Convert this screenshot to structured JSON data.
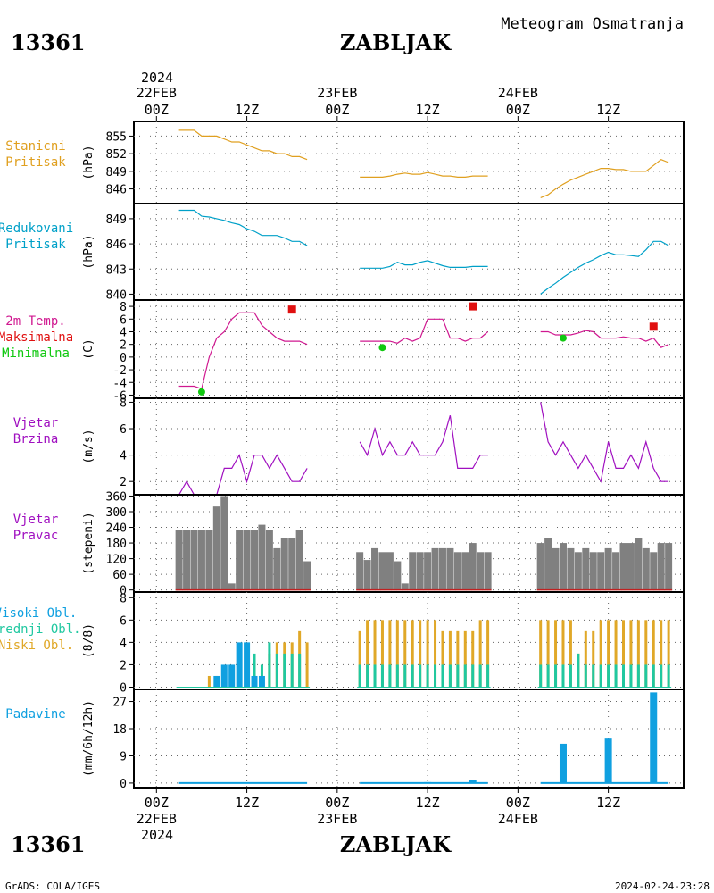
{
  "header": {
    "station_id": "13361",
    "station_name": "ZABLJAK",
    "meteogram_title": "Meteogram Osmatranja",
    "footer_left": "GrADS: COLA/IGES",
    "footer_right": "2024-02-24-23:28"
  },
  "time_axis": {
    "year_label": "2024",
    "top_labels": [
      {
        "hour": 0,
        "line1": "22FEB",
        "line2": "00Z"
      },
      {
        "hour": 12,
        "line1": "",
        "line2": "12Z"
      },
      {
        "hour": 24,
        "line1": "23FEB",
        "line2": "00Z"
      },
      {
        "hour": 36,
        "line1": "",
        "line2": "12Z"
      },
      {
        "hour": 48,
        "line1": "24FEB",
        "line2": "00Z"
      },
      {
        "hour": 60,
        "line1": "",
        "line2": "12Z"
      }
    ],
    "range_hours": [
      -3,
      70
    ]
  },
  "colors": {
    "station_pressure": "#e0a020",
    "reduced_pressure": "#00a0c8",
    "temperature": "#d01890",
    "maximum": "#e01010",
    "minimum": "#10c810",
    "wind": "#a010c0",
    "direction_bar": "#808080",
    "high_cloud": "#10a0e0",
    "mid_cloud": "#20c8a0",
    "low_cloud": "#e0a828",
    "precip": "#10a0e0"
  },
  "chart_data": [
    {
      "type": "line",
      "panel": "station_pressure",
      "labels": [
        "Stanicni",
        "Pritisak"
      ],
      "ylabel": "(hPa)",
      "ylim": [
        843.5,
        857.5
      ],
      "yticks": [
        846,
        849,
        852,
        855
      ],
      "series": [
        {
          "x": [
            3,
            4,
            5,
            6,
            7,
            8,
            9,
            10,
            11,
            12,
            13,
            14,
            15,
            16,
            17,
            18,
            19,
            20,
            27,
            28,
            29,
            30,
            31,
            32,
            33,
            34,
            35,
            36,
            37,
            38,
            39,
            40,
            41,
            42,
            43,
            44,
            51,
            52,
            53,
            54,
            55,
            56,
            57,
            58,
            59,
            60,
            61,
            62,
            63,
            64,
            65,
            66,
            67,
            68
          ],
          "y": [
            856,
            856,
            856,
            855,
            855,
            855,
            854.5,
            854,
            854,
            853.5,
            853,
            852.5,
            852.5,
            852,
            852,
            851.5,
            851.5,
            851,
            848,
            848,
            848,
            848,
            848.2,
            848.5,
            848.7,
            848.5,
            848.5,
            848.8,
            848.5,
            848.2,
            848.2,
            848,
            848,
            848.2,
            848.2,
            848.2,
            844.5,
            845,
            846,
            846.8,
            847.5,
            848,
            848.5,
            849,
            849.5,
            849.5,
            849.3,
            849.3,
            849,
            849,
            849,
            850,
            851,
            850.5
          ]
        }
      ]
    },
    {
      "type": "line",
      "panel": "reduced_pressure",
      "labels": [
        "Redukovani",
        "Pritisak"
      ],
      "ylabel": "(hPa)",
      "ylim": [
        839.3,
        850.8
      ],
      "yticks": [
        840,
        843,
        846,
        849
      ],
      "series": [
        {
          "x": [
            3,
            4,
            5,
            6,
            7,
            8,
            9,
            10,
            11,
            12,
            13,
            14,
            15,
            16,
            17,
            18,
            19,
            20,
            27,
            28,
            29,
            30,
            31,
            32,
            33,
            34,
            35,
            36,
            37,
            38,
            39,
            40,
            41,
            42,
            43,
            44,
            51,
            52,
            53,
            54,
            55,
            56,
            57,
            58,
            59,
            60,
            61,
            62,
            63,
            64,
            65,
            66,
            67,
            68
          ],
          "y": [
            850,
            850,
            850,
            849.3,
            849.2,
            849,
            848.8,
            848.5,
            848.3,
            847.8,
            847.5,
            847,
            847,
            847,
            846.7,
            846.3,
            846.3,
            845.8,
            843.1,
            843.1,
            843.1,
            843.1,
            843.3,
            843.8,
            843.5,
            843.5,
            843.8,
            844,
            843.7,
            843.4,
            843.2,
            843.2,
            843.2,
            843.3,
            843.3,
            843.3,
            840,
            840.7,
            841.3,
            842,
            842.6,
            843.2,
            843.7,
            844.1,
            844.6,
            845,
            844.7,
            844.7,
            844.6,
            844.5,
            845.3,
            846.3,
            846.3,
            845.8
          ]
        }
      ]
    },
    {
      "type": "line",
      "panel": "temperature",
      "labels": [
        "2m Temp.",
        "Maksimalna",
        "Minimalna"
      ],
      "ylabel": "(C)",
      "ylim": [
        -6.5,
        9
      ],
      "yticks": [
        -6,
        -4,
        -2,
        0,
        2,
        4,
        6,
        8
      ],
      "series": [
        {
          "name": "2m Temp.",
          "x": [
            3,
            4,
            5,
            6,
            7,
            8,
            9,
            10,
            11,
            12,
            13,
            14,
            15,
            16,
            17,
            18,
            19,
            20,
            27,
            28,
            29,
            30,
            31,
            32,
            33,
            34,
            35,
            36,
            37,
            38,
            39,
            40,
            41,
            42,
            43,
            44,
            51,
            52,
            53,
            54,
            55,
            56,
            57,
            58,
            59,
            60,
            61,
            62,
            63,
            64,
            65,
            66,
            67,
            68
          ],
          "y": [
            -4.6,
            -4.6,
            -4.6,
            -5,
            0,
            3,
            4,
            6,
            7,
            7,
            7,
            5,
            4,
            3,
            2.5,
            2.5,
            2.5,
            2,
            2.5,
            2.5,
            2.5,
            2.5,
            2.5,
            2.2,
            3,
            2.5,
            3,
            6,
            6,
            6,
            3,
            3,
            2.5,
            3,
            3,
            4,
            4,
            4,
            3.5,
            3.5,
            3.5,
            3.8,
            4.2,
            4,
            3,
            3,
            3,
            3.2,
            3,
            3,
            2.5,
            3,
            1.5,
            2
          ]
        },
        {
          "name": "Maksimalna",
          "x": [
            18,
            42,
            66
          ],
          "y": [
            7.5,
            8,
            4.8
          ]
        },
        {
          "name": "Minimalna",
          "x": [
            6,
            30,
            54
          ],
          "y": [
            -5.5,
            1.5,
            3
          ]
        }
      ]
    },
    {
      "type": "line",
      "panel": "wind_speed",
      "labels": [
        "Vjetar",
        "Brzina"
      ],
      "ylabel": "(m/s)",
      "ylim": [
        1,
        8.3
      ],
      "yticks": [
        2,
        4,
        6,
        8
      ],
      "series": [
        {
          "x": [
            3,
            4,
            5,
            6,
            7,
            8,
            9,
            10,
            11,
            12,
            13,
            14,
            15,
            16,
            17,
            18,
            19,
            20,
            27,
            28,
            29,
            30,
            31,
            32,
            33,
            34,
            35,
            36,
            37,
            38,
            39,
            40,
            41,
            42,
            43,
            44,
            51,
            52,
            53,
            54,
            55,
            56,
            57,
            58,
            59,
            60,
            61,
            62,
            63,
            64,
            65,
            66,
            67,
            68
          ],
          "y": [
            1,
            2,
            1,
            1,
            1,
            1,
            3,
            3,
            4,
            2,
            4,
            4,
            3,
            4,
            3,
            2,
            2,
            3,
            5,
            4,
            6,
            4,
            5,
            4,
            4,
            5,
            4,
            4,
            4,
            5,
            7,
            3,
            3,
            3,
            4,
            4,
            8,
            5,
            4,
            5,
            4,
            3,
            4,
            3,
            2,
            5,
            3,
            3,
            4,
            3,
            5,
            3,
            2,
            2
          ]
        }
      ]
    },
    {
      "type": "bar",
      "panel": "wind_direction",
      "labels": [
        "Vjetar",
        "Pravac"
      ],
      "ylabel": "(stepeni)",
      "ylim": [
        -8,
        365
      ],
      "yticks": [
        0,
        60,
        120,
        180,
        240,
        300,
        360
      ],
      "x": [
        3,
        4,
        5,
        6,
        7,
        8,
        9,
        10,
        11,
        12,
        13,
        14,
        15,
        16,
        17,
        18,
        19,
        20,
        27,
        28,
        29,
        30,
        31,
        32,
        33,
        34,
        35,
        36,
        37,
        38,
        39,
        40,
        41,
        42,
        43,
        44,
        51,
        52,
        53,
        54,
        55,
        56,
        57,
        58,
        59,
        60,
        61,
        62,
        63,
        64,
        65,
        66,
        67,
        68
      ],
      "values": [
        230,
        230,
        230,
        230,
        230,
        320,
        360,
        25,
        230,
        230,
        230,
        250,
        230,
        160,
        200,
        200,
        230,
        110,
        145,
        115,
        160,
        145,
        145,
        110,
        25,
        145,
        145,
        145,
        160,
        160,
        160,
        145,
        145,
        180,
        145,
        145,
        180,
        200,
        160,
        180,
        160,
        145,
        160,
        145,
        145,
        160,
        145,
        180,
        180,
        200,
        160,
        145,
        180,
        180
      ]
    },
    {
      "type": "bar",
      "panel": "clouds",
      "labels": [
        "Visoki Obl.",
        "Srednji Obl.",
        "Niski Obl."
      ],
      "ylabel": "(8/8)",
      "ylim": [
        -0.2,
        8.5
      ],
      "yticks": [
        0,
        2,
        4,
        6,
        8
      ],
      "x": [
        3,
        4,
        5,
        6,
        7,
        8,
        9,
        10,
        11,
        12,
        13,
        14,
        15,
        16,
        17,
        18,
        19,
        20,
        27,
        28,
        29,
        30,
        31,
        32,
        33,
        34,
        35,
        36,
        37,
        38,
        39,
        40,
        41,
        42,
        43,
        44,
        51,
        52,
        53,
        54,
        55,
        56,
        57,
        58,
        59,
        60,
        61,
        62,
        63,
        64,
        65,
        66,
        67,
        68
      ],
      "series": [
        {
          "name": "Visoki Obl.",
          "values": [
            0,
            0,
            0,
            0,
            0,
            1,
            2,
            2,
            4,
            4,
            1,
            1,
            0,
            0,
            0,
            0,
            0,
            0,
            0,
            0,
            0,
            0,
            0,
            0,
            0,
            0,
            0,
            0,
            0,
            0,
            0,
            0,
            0,
            0,
            0,
            0,
            0,
            0,
            0,
            0,
            0,
            0,
            0,
            0,
            0,
            0,
            0,
            0,
            0,
            0,
            0,
            0,
            0,
            0
          ]
        },
        {
          "name": "Srednji Obl.",
          "values": [
            0,
            0,
            0,
            0,
            0,
            0,
            0,
            0,
            0,
            0,
            3,
            2,
            4,
            3,
            3,
            3,
            3,
            0,
            2,
            2,
            2,
            2,
            2,
            2,
            2,
            2,
            2,
            2,
            2,
            2,
            2,
            2,
            2,
            2,
            2,
            2,
            2,
            2,
            2,
            2,
            2,
            3,
            2,
            2,
            2,
            2,
            2,
            2,
            2,
            2,
            2,
            2,
            2,
            2
          ]
        },
        {
          "name": "Niski Obl.",
          "values": [
            0,
            0,
            0,
            0,
            1,
            1,
            1,
            1,
            1,
            1,
            1,
            1,
            3,
            4,
            4,
            4,
            5,
            4,
            5,
            6,
            6,
            6,
            6,
            6,
            6,
            6,
            6,
            6,
            6,
            5,
            5,
            5,
            5,
            5,
            6,
            6,
            6,
            6,
            6,
            6,
            6,
            3,
            5,
            5,
            6,
            6,
            6,
            6,
            6,
            6,
            6,
            6,
            6,
            6
          ]
        }
      ]
    },
    {
      "type": "bar",
      "panel": "precipitation",
      "labels": [
        "Padavine"
      ],
      "ylabel": "(mm/6h/12h)",
      "ylim": [
        -1.5,
        31
      ],
      "yticks": [
        0,
        9,
        18,
        27
      ],
      "x": [
        6,
        12,
        18,
        30,
        36,
        42,
        54,
        60,
        66
      ],
      "values": [
        0,
        0,
        0,
        0,
        0.3,
        1,
        13,
        15,
        30
      ]
    }
  ]
}
